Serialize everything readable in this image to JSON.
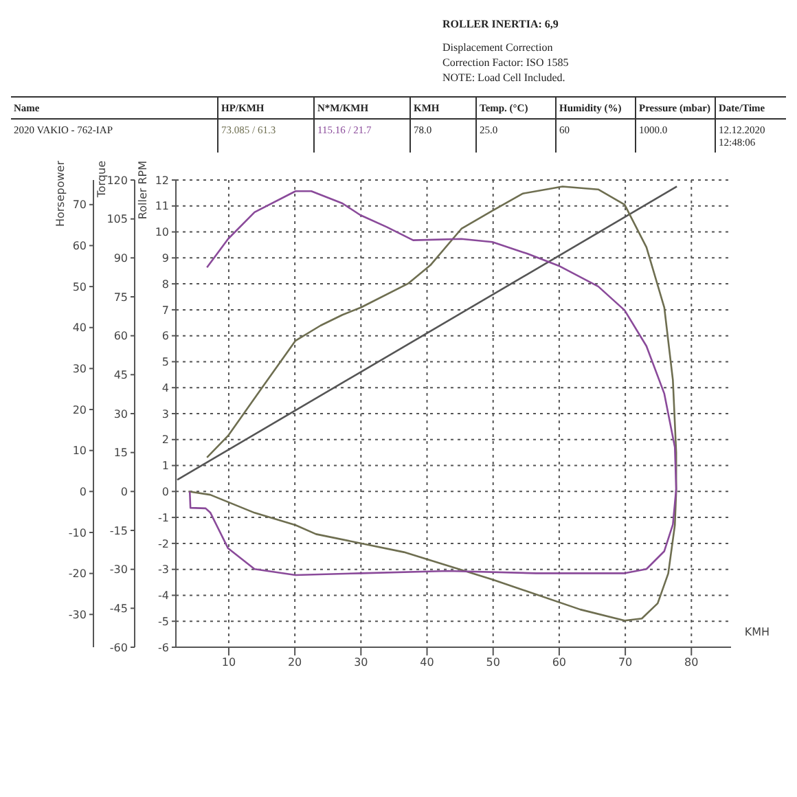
{
  "chart_data": {
    "type": "line",
    "xlabel": "KMH",
    "ylabel": "Roller RPM",
    "y2label": "Torque",
    "y3label": "Horsepower",
    "annotations": [
      "ROLLER INERTIA: 6,9",
      "Displacement Correction",
      "Correction Factor: ISO 1585",
      "NOTE: Load Cell Included.",
      "Name",
      "HP/KMH",
      "N*M/KMH",
      "KMH",
      "Temp. (°C)",
      "Humidity (%)",
      "Pressure (mbar)",
      "Date/Time",
      "2020 VAKIO - 762-IAP",
      "73.085 / 61.3",
      "115.16 / 21.7",
      "78.0",
      "25.0",
      "60",
      "1000.0",
      "12.12.2020 12:48:06"
    ],
    "xlim": [
      2,
      86
    ],
    "xticks": [
      10,
      20,
      30,
      40,
      50,
      60,
      70,
      80
    ],
    "ylim": [
      -6,
      12
    ],
    "yticks": [
      -6,
      -5,
      -4,
      -3,
      -2,
      -1,
      0,
      1,
      2,
      3,
      4,
      5,
      6,
      7,
      8,
      9,
      10,
      11,
      12
    ],
    "y2lim": [
      -60,
      120
    ],
    "y2ticks": [
      -60,
      -45,
      -30,
      -15,
      0,
      15,
      30,
      45,
      60,
      75,
      90,
      105,
      120
    ],
    "y3lim": [
      -38,
      76
    ],
    "y3ticks": [
      -30,
      -20,
      -10,
      0,
      10,
      20,
      30,
      40,
      50,
      60,
      70
    ],
    "grid": true,
    "marker": "none",
    "line_style": "solid",
    "series": [
      {
        "type": "line",
        "axis": "y",
        "color": "#555555",
        "x": [
          2.2,
          77.8
        ],
        "values": [
          0.45,
          11.75
        ]
      },
      {
        "type": "line",
        "axis": "y3",
        "color": "#6e6e50",
        "x": [
          6.7,
          9.9,
          15.2,
          20.1,
          23.9,
          27.2,
          30,
          37.2,
          40.5,
          45.2,
          49.9,
          54.5,
          60.5,
          65.9,
          69.9,
          73.2,
          75.9,
          77.2,
          77.7,
          77.7,
          77.5,
          76.5,
          74.9,
          72.5,
          69.9,
          63.2,
          49.9,
          36.5,
          23.2,
          20.1,
          13.9,
          7.2,
          3.9
        ],
        "values": [
          8.3,
          13.6,
          25.7,
          36.8,
          40.5,
          43.1,
          44.9,
          50.8,
          55.2,
          64.1,
          68.5,
          72.7,
          74.4,
          73.7,
          70,
          59.6,
          44.9,
          27.2,
          9.5,
          0,
          -8.2,
          -20,
          -27.3,
          -31,
          -31.5,
          -28.8,
          -21.5,
          -14.8,
          -10.4,
          -8.2,
          -5.2,
          -0.8,
          0
        ]
      },
      {
        "type": "line",
        "axis": "y2",
        "color": "#8a4a9a",
        "x": [
          6.7,
          9.9,
          13.9,
          20.1,
          22.5,
          27.2,
          29.9,
          33.9,
          37.9,
          45.2,
          49.9,
          55.2,
          59.9,
          65.9,
          69.9,
          73.2,
          75.9,
          77.5,
          77.7,
          77.2,
          75.9,
          73.2,
          69.9,
          56.5,
          43.2,
          29.9,
          20.1,
          13.9,
          9.9,
          7.2,
          6.5,
          4.2,
          4.1
        ],
        "values": [
          86.3,
          97.3,
          107.6,
          115.7,
          115.7,
          111,
          106.5,
          101.9,
          96.8,
          97.3,
          96.1,
          91.6,
          87,
          79,
          69.8,
          56,
          37.7,
          17,
          1,
          -12.7,
          -23,
          -29.9,
          -31.5,
          -31.5,
          -30.6,
          -31.5,
          -32.2,
          -29.9,
          -21.9,
          -8.1,
          -6.5,
          -6.3,
          0
        ]
      }
    ]
  }
}
